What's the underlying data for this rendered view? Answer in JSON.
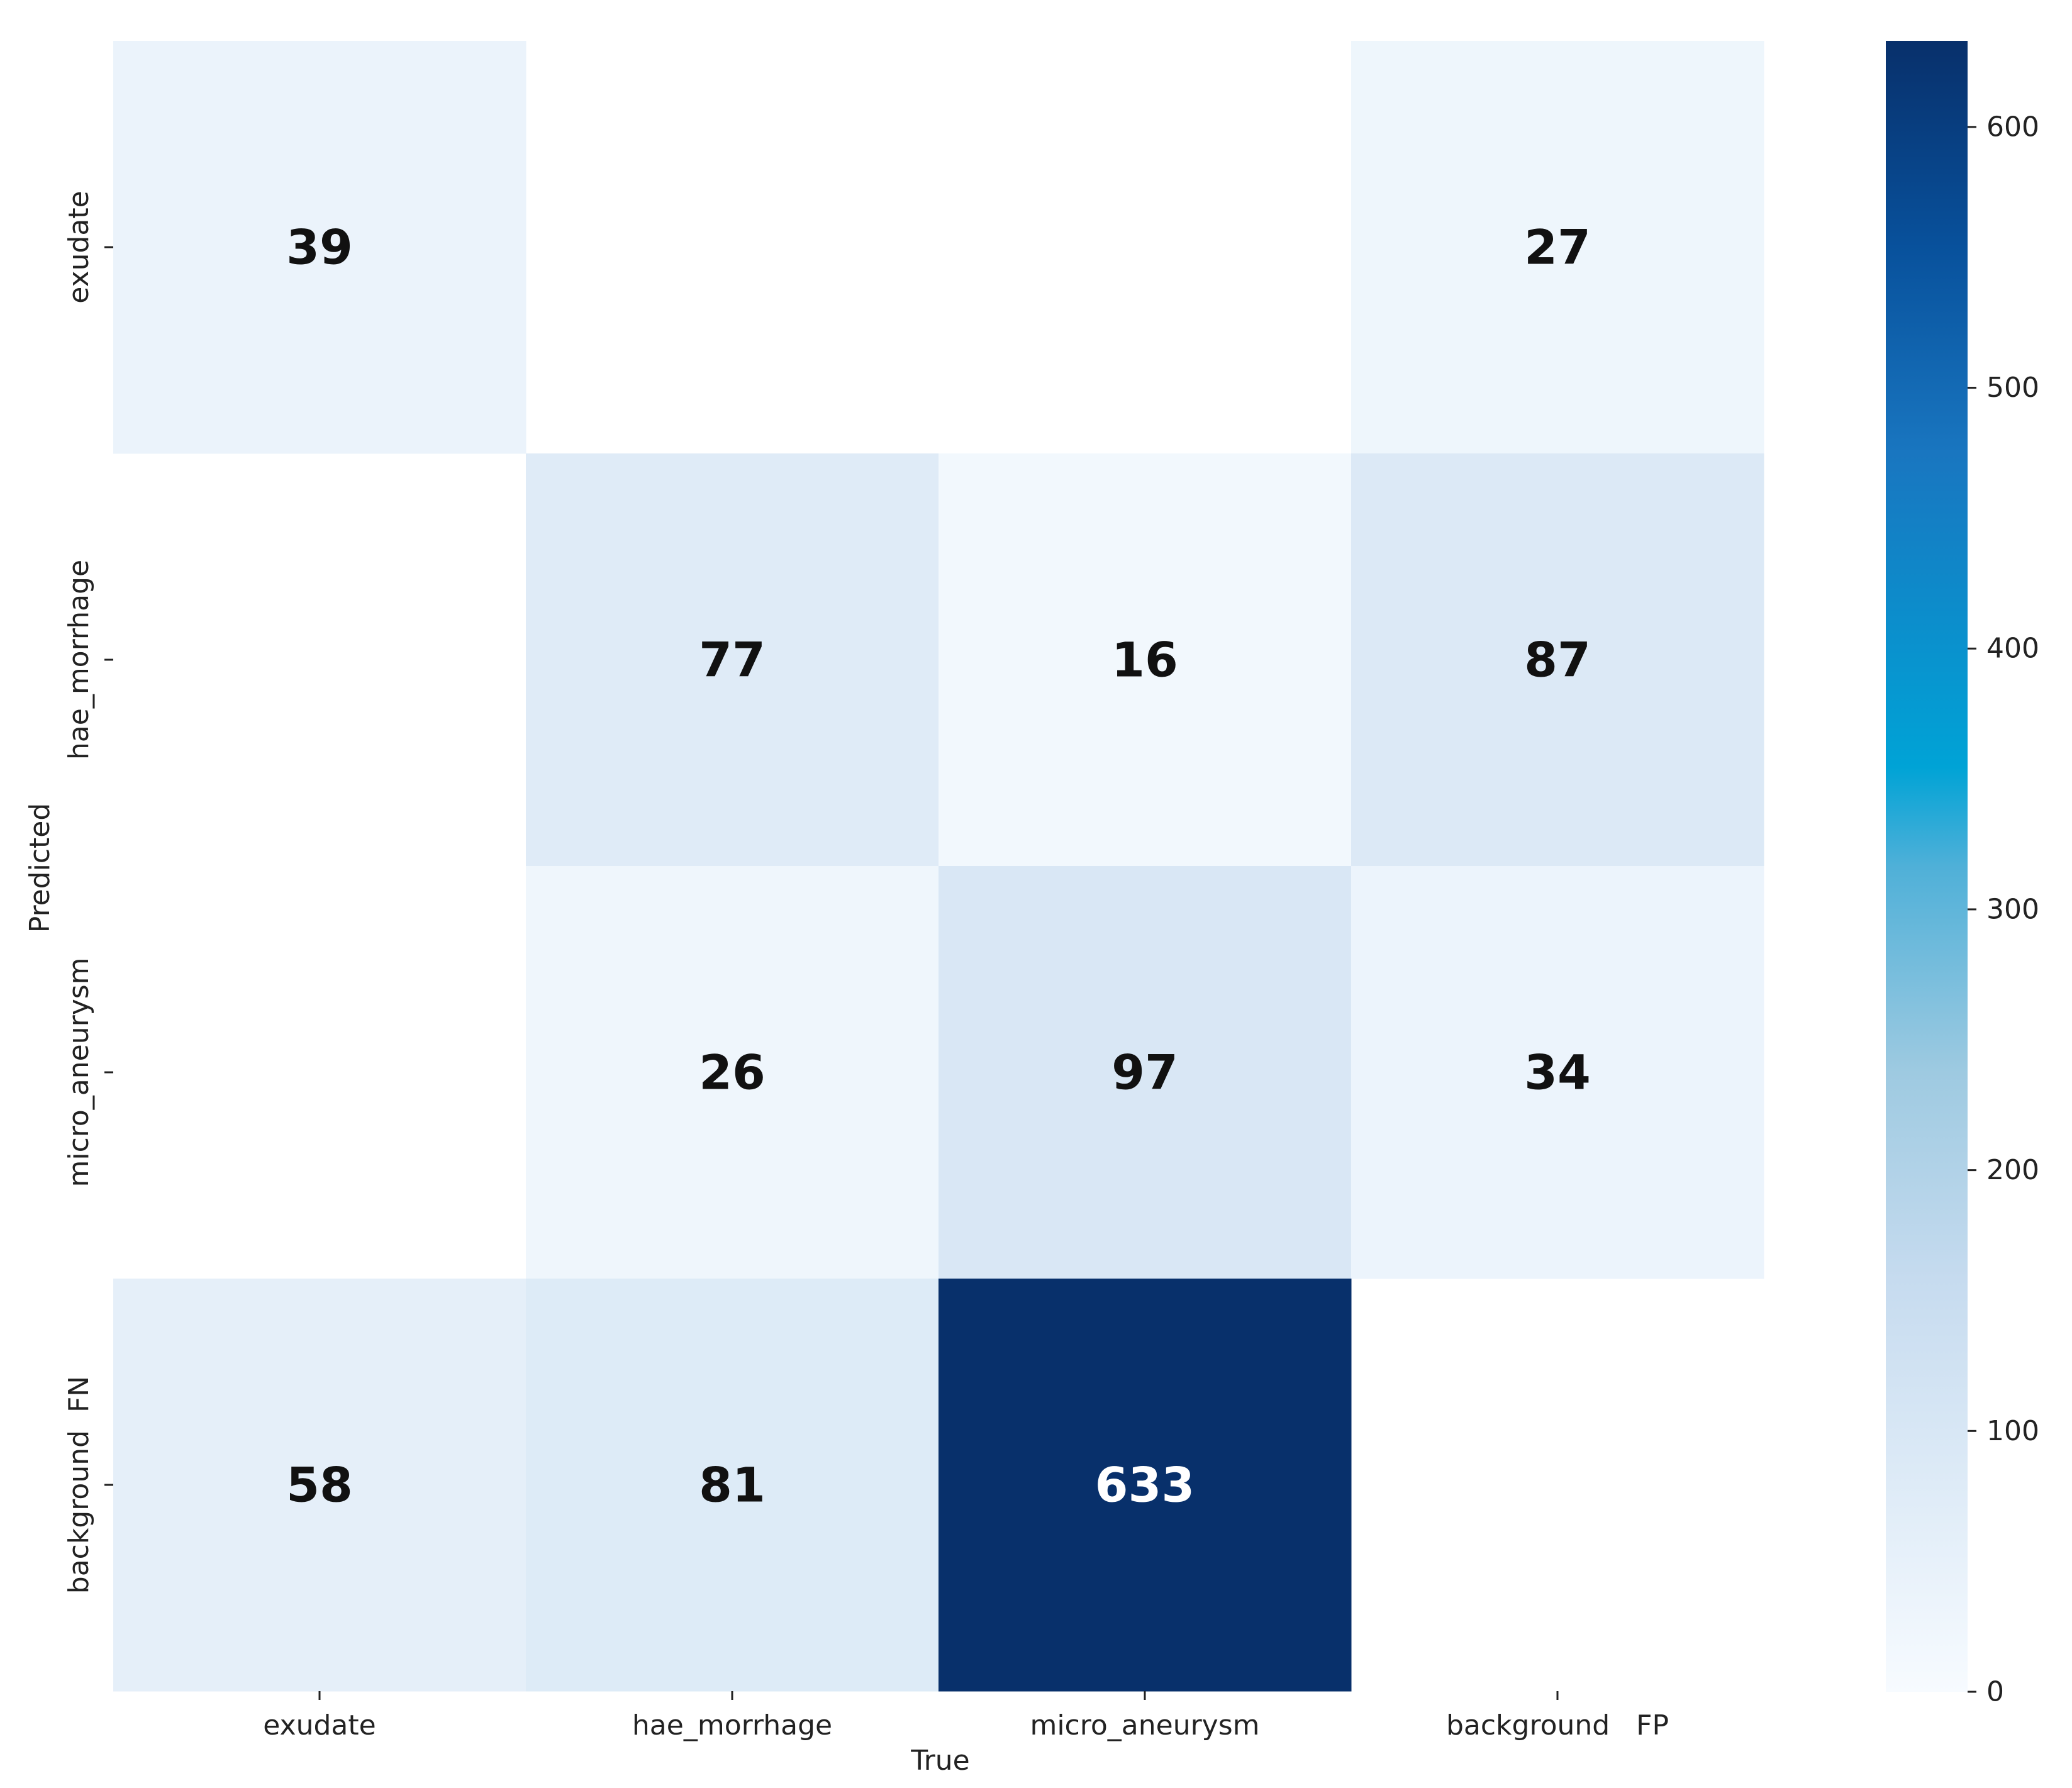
{
  "chart_data": {
    "type": "heatmap",
    "title": "",
    "xlabel": "True",
    "ylabel": "Predicted",
    "x_categories": [
      "exudate",
      "hae_morrhage",
      "micro_aneurysm",
      "background   FP"
    ],
    "y_categories": [
      "exudate",
      "hae_morrhage",
      "micro_aneurysm",
      "background  FN"
    ],
    "values": [
      [
        39,
        null,
        null,
        27
      ],
      [
        null,
        77,
        16,
        87
      ],
      [
        null,
        26,
        97,
        34
      ],
      [
        58,
        81,
        633,
        null
      ]
    ],
    "colormap": "Blues",
    "vmin": 0,
    "vmax": 633,
    "colorbar_ticks": [
      0,
      100,
      200,
      300,
      400,
      500,
      600
    ],
    "colors": {
      "low": "#f7fbff",
      "mid": "#6baed6",
      "high": "#08306b",
      "text_dark": "#111111",
      "text_light": "#ffffff"
    }
  }
}
